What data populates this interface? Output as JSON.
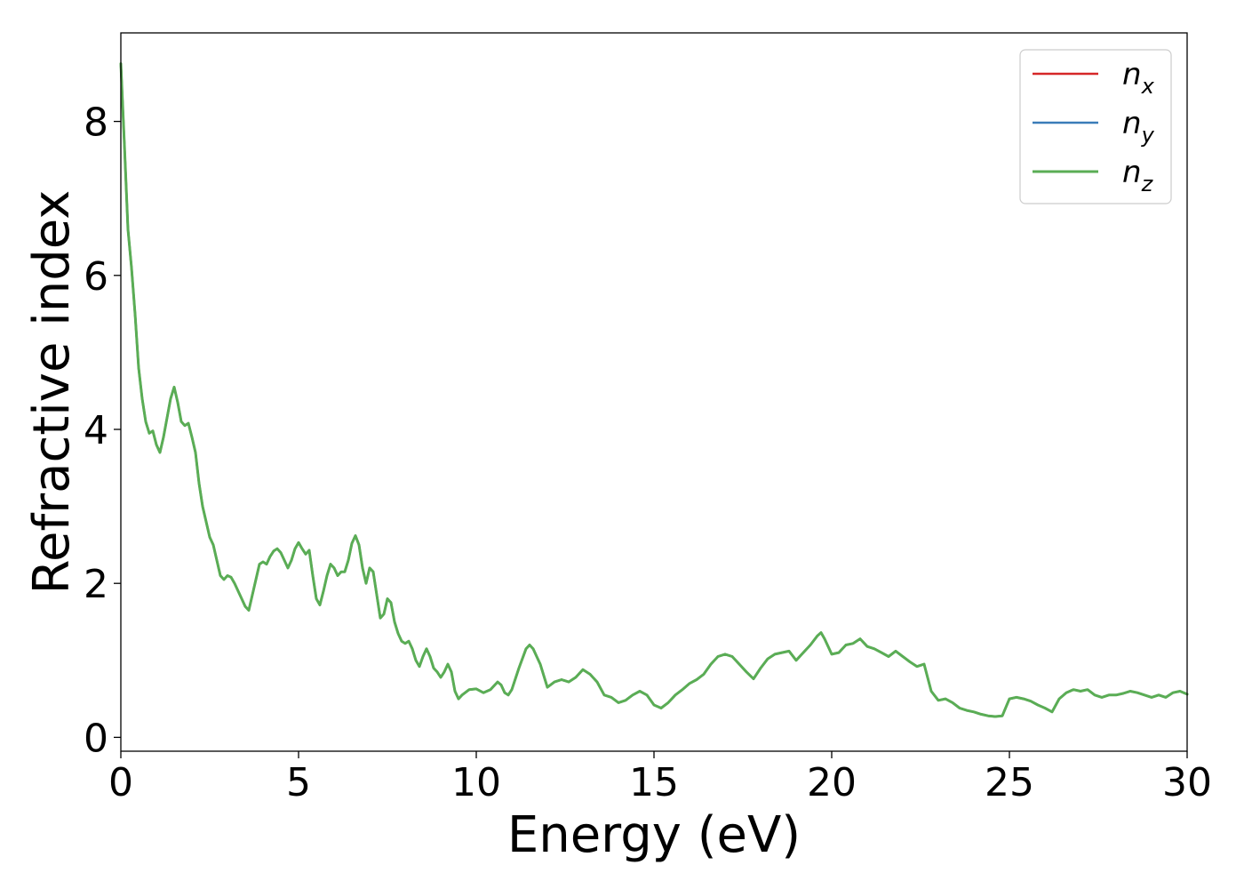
{
  "chart_data": {
    "type": "line",
    "xlabel": "Energy (eV)",
    "ylabel": "Refractive index",
    "xlim": [
      0,
      30
    ],
    "ylim": [
      -0.18,
      9.15
    ],
    "xticks": [
      0,
      5,
      10,
      15,
      20,
      25,
      30
    ],
    "yticks": [
      0,
      2,
      4,
      6,
      8
    ],
    "grid": false,
    "legend_position": "top-right",
    "x": [
      0,
      0.1,
      0.2,
      0.3,
      0.4,
      0.5,
      0.6,
      0.7,
      0.8,
      0.9,
      1.0,
      1.1,
      1.2,
      1.3,
      1.4,
      1.5,
      1.6,
      1.7,
      1.8,
      1.9,
      2.0,
      2.1,
      2.2,
      2.3,
      2.4,
      2.5,
      2.6,
      2.7,
      2.8,
      2.9,
      3.0,
      3.1,
      3.2,
      3.3,
      3.4,
      3.5,
      3.6,
      3.7,
      3.8,
      3.9,
      4.0,
      4.1,
      4.2,
      4.3,
      4.4,
      4.5,
      4.6,
      4.7,
      4.8,
      4.9,
      5.0,
      5.1,
      5.2,
      5.3,
      5.4,
      5.5,
      5.6,
      5.7,
      5.8,
      5.9,
      6.0,
      6.1,
      6.2,
      6.3,
      6.4,
      6.5,
      6.6,
      6.7,
      6.8,
      6.9,
      7.0,
      7.1,
      7.2,
      7.3,
      7.4,
      7.5,
      7.6,
      7.7,
      7.8,
      7.9,
      8.0,
      8.1,
      8.2,
      8.3,
      8.4,
      8.5,
      8.6,
      8.7,
      8.8,
      8.9,
      9.0,
      9.1,
      9.2,
      9.3,
      9.4,
      9.5,
      9.6,
      9.8,
      10.0,
      10.2,
      10.4,
      10.6,
      10.7,
      10.8,
      10.9,
      11.0,
      11.2,
      11.4,
      11.5,
      11.6,
      11.7,
      11.8,
      12.0,
      12.2,
      12.4,
      12.6,
      12.8,
      13.0,
      13.2,
      13.4,
      13.6,
      13.8,
      14.0,
      14.2,
      14.4,
      14.6,
      14.8,
      15.0,
      15.2,
      15.4,
      15.6,
      15.8,
      16.0,
      16.2,
      16.4,
      16.6,
      16.8,
      17.0,
      17.2,
      17.4,
      17.6,
      17.8,
      18.0,
      18.2,
      18.4,
      18.6,
      18.8,
      19.0,
      19.2,
      19.4,
      19.6,
      19.7,
      19.8,
      20.0,
      20.2,
      20.4,
      20.6,
      20.8,
      21.0,
      21.2,
      21.4,
      21.6,
      21.8,
      22.0,
      22.2,
      22.4,
      22.6,
      22.8,
      23.0,
      23.2,
      23.4,
      23.6,
      23.8,
      24.0,
      24.2,
      24.4,
      24.6,
      24.8,
      25.0,
      25.2,
      25.4,
      25.6,
      25.8,
      26.0,
      26.2,
      26.4,
      26.6,
      26.8,
      27.0,
      27.2,
      27.4,
      27.6,
      27.8,
      28.0,
      28.2,
      28.4,
      28.6,
      28.8,
      29.0,
      29.2,
      29.4,
      29.6,
      29.8,
      30.0
    ],
    "series": [
      {
        "name": "n_x",
        "label_base": "n",
        "label_sub": "x",
        "color": "#d62728",
        "line_width": 2.5,
        "values": [
          8.75,
          7.7,
          6.6,
          6.1,
          5.5,
          4.8,
          4.4,
          4.1,
          3.95,
          3.98,
          3.8,
          3.7,
          3.9,
          4.15,
          4.4,
          4.55,
          4.35,
          4.1,
          4.05,
          4.08,
          3.9,
          3.7,
          3.3,
          3.0,
          2.8,
          2.6,
          2.5,
          2.3,
          2.1,
          2.05,
          2.1,
          2.08,
          2.0,
          1.9,
          1.8,
          1.7,
          1.65,
          1.85,
          2.05,
          2.25,
          2.28,
          2.25,
          2.35,
          2.42,
          2.45,
          2.4,
          2.3,
          2.2,
          2.3,
          2.45,
          2.53,
          2.45,
          2.38,
          2.43,
          2.1,
          1.8,
          1.72,
          1.9,
          2.1,
          2.25,
          2.2,
          2.1,
          2.15,
          2.15,
          2.3,
          2.52,
          2.62,
          2.5,
          2.2,
          2.0,
          2.2,
          2.15,
          1.85,
          1.55,
          1.6,
          1.8,
          1.75,
          1.5,
          1.35,
          1.25,
          1.22,
          1.25,
          1.15,
          1.0,
          0.92,
          1.05,
          1.15,
          1.05,
          0.9,
          0.85,
          0.78,
          0.85,
          0.95,
          0.85,
          0.6,
          0.5,
          0.55,
          0.62,
          0.63,
          0.58,
          0.62,
          0.72,
          0.68,
          0.58,
          0.55,
          0.62,
          0.9,
          1.15,
          1.2,
          1.15,
          1.05,
          0.95,
          0.65,
          0.72,
          0.75,
          0.72,
          0.78,
          0.88,
          0.82,
          0.72,
          0.55,
          0.52,
          0.45,
          0.48,
          0.55,
          0.6,
          0.55,
          0.42,
          0.38,
          0.45,
          0.55,
          0.62,
          0.7,
          0.75,
          0.82,
          0.95,
          1.05,
          1.08,
          1.05,
          0.95,
          0.85,
          0.76,
          0.9,
          1.02,
          1.08,
          1.1,
          1.12,
          1.0,
          1.1,
          1.2,
          1.32,
          1.36,
          1.28,
          1.08,
          1.1,
          1.2,
          1.22,
          1.28,
          1.18,
          1.15,
          1.1,
          1.05,
          1.12,
          1.05,
          0.98,
          0.92,
          0.95,
          0.6,
          0.48,
          0.5,
          0.45,
          0.38,
          0.35,
          0.33,
          0.3,
          0.28,
          0.27,
          0.28,
          0.5,
          0.52,
          0.5,
          0.47,
          0.42,
          0.38,
          0.33,
          0.5,
          0.58,
          0.62,
          0.6,
          0.62,
          0.55,
          0.52,
          0.55,
          0.55,
          0.57,
          0.6,
          0.58,
          0.55,
          0.52,
          0.55,
          0.52,
          0.58,
          0.6,
          0.56
        ]
      },
      {
        "name": "n_y",
        "label_base": "n",
        "label_sub": "y",
        "color": "#3a7cb8",
        "line_width": 2.5,
        "values": [
          8.75,
          7.7,
          6.6,
          6.1,
          5.5,
          4.8,
          4.4,
          4.1,
          3.95,
          3.98,
          3.8,
          3.7,
          3.9,
          4.15,
          4.4,
          4.55,
          4.35,
          4.1,
          4.05,
          4.08,
          3.9,
          3.7,
          3.3,
          3.0,
          2.8,
          2.6,
          2.5,
          2.3,
          2.1,
          2.05,
          2.1,
          2.08,
          2.0,
          1.9,
          1.8,
          1.7,
          1.65,
          1.85,
          2.05,
          2.25,
          2.28,
          2.25,
          2.35,
          2.42,
          2.45,
          2.4,
          2.3,
          2.2,
          2.3,
          2.45,
          2.53,
          2.45,
          2.38,
          2.43,
          2.1,
          1.8,
          1.72,
          1.9,
          2.1,
          2.25,
          2.2,
          2.1,
          2.15,
          2.15,
          2.3,
          2.52,
          2.62,
          2.5,
          2.2,
          2.0,
          2.2,
          2.15,
          1.85,
          1.55,
          1.6,
          1.8,
          1.75,
          1.5,
          1.35,
          1.25,
          1.22,
          1.25,
          1.15,
          1.0,
          0.92,
          1.05,
          1.15,
          1.05,
          0.9,
          0.85,
          0.78,
          0.85,
          0.95,
          0.85,
          0.6,
          0.5,
          0.55,
          0.62,
          0.63,
          0.58,
          0.62,
          0.72,
          0.68,
          0.58,
          0.55,
          0.62,
          0.9,
          1.15,
          1.2,
          1.15,
          1.05,
          0.95,
          0.65,
          0.72,
          0.75,
          0.72,
          0.78,
          0.88,
          0.82,
          0.72,
          0.55,
          0.52,
          0.45,
          0.48,
          0.55,
          0.6,
          0.55,
          0.42,
          0.38,
          0.45,
          0.55,
          0.62,
          0.7,
          0.75,
          0.82,
          0.95,
          1.05,
          1.08,
          1.05,
          0.95,
          0.85,
          0.76,
          0.9,
          1.02,
          1.08,
          1.1,
          1.12,
          1.0,
          1.1,
          1.2,
          1.32,
          1.36,
          1.28,
          1.08,
          1.1,
          1.2,
          1.22,
          1.28,
          1.18,
          1.15,
          1.1,
          1.05,
          1.12,
          1.05,
          0.98,
          0.92,
          0.95,
          0.6,
          0.48,
          0.5,
          0.45,
          0.38,
          0.35,
          0.33,
          0.3,
          0.28,
          0.27,
          0.28,
          0.5,
          0.52,
          0.5,
          0.47,
          0.42,
          0.38,
          0.33,
          0.5,
          0.58,
          0.62,
          0.6,
          0.62,
          0.55,
          0.52,
          0.55,
          0.55,
          0.57,
          0.6,
          0.58,
          0.55,
          0.52,
          0.55,
          0.52,
          0.58,
          0.6,
          0.56
        ]
      },
      {
        "name": "n_z",
        "label_base": "n",
        "label_sub": "z",
        "color": "#5aad55",
        "line_width": 3,
        "values": [
          8.75,
          7.7,
          6.6,
          6.1,
          5.5,
          4.8,
          4.4,
          4.1,
          3.95,
          3.98,
          3.8,
          3.7,
          3.9,
          4.15,
          4.4,
          4.55,
          4.35,
          4.1,
          4.05,
          4.08,
          3.9,
          3.7,
          3.3,
          3.0,
          2.8,
          2.6,
          2.5,
          2.3,
          2.1,
          2.05,
          2.1,
          2.08,
          2.0,
          1.9,
          1.8,
          1.7,
          1.65,
          1.85,
          2.05,
          2.25,
          2.28,
          2.25,
          2.35,
          2.42,
          2.45,
          2.4,
          2.3,
          2.2,
          2.3,
          2.45,
          2.53,
          2.45,
          2.38,
          2.43,
          2.1,
          1.8,
          1.72,
          1.9,
          2.1,
          2.25,
          2.2,
          2.1,
          2.15,
          2.15,
          2.3,
          2.52,
          2.62,
          2.5,
          2.2,
          2.0,
          2.2,
          2.15,
          1.85,
          1.55,
          1.6,
          1.8,
          1.75,
          1.5,
          1.35,
          1.25,
          1.22,
          1.25,
          1.15,
          1.0,
          0.92,
          1.05,
          1.15,
          1.05,
          0.9,
          0.85,
          0.78,
          0.85,
          0.95,
          0.85,
          0.6,
          0.5,
          0.55,
          0.62,
          0.63,
          0.58,
          0.62,
          0.72,
          0.68,
          0.58,
          0.55,
          0.62,
          0.9,
          1.15,
          1.2,
          1.15,
          1.05,
          0.95,
          0.65,
          0.72,
          0.75,
          0.72,
          0.78,
          0.88,
          0.82,
          0.72,
          0.55,
          0.52,
          0.45,
          0.48,
          0.55,
          0.6,
          0.55,
          0.42,
          0.38,
          0.45,
          0.55,
          0.62,
          0.7,
          0.75,
          0.82,
          0.95,
          1.05,
          1.08,
          1.05,
          0.95,
          0.85,
          0.76,
          0.9,
          1.02,
          1.08,
          1.1,
          1.12,
          1.0,
          1.1,
          1.2,
          1.32,
          1.36,
          1.28,
          1.08,
          1.1,
          1.2,
          1.22,
          1.28,
          1.18,
          1.15,
          1.1,
          1.05,
          1.12,
          1.05,
          0.98,
          0.92,
          0.95,
          0.6,
          0.48,
          0.5,
          0.45,
          0.38,
          0.35,
          0.33,
          0.3,
          0.28,
          0.27,
          0.28,
          0.5,
          0.52,
          0.5,
          0.47,
          0.42,
          0.38,
          0.33,
          0.5,
          0.58,
          0.62,
          0.6,
          0.62,
          0.55,
          0.52,
          0.55,
          0.55,
          0.57,
          0.6,
          0.58,
          0.55,
          0.52,
          0.55,
          0.52,
          0.58,
          0.6,
          0.56
        ]
      }
    ]
  }
}
